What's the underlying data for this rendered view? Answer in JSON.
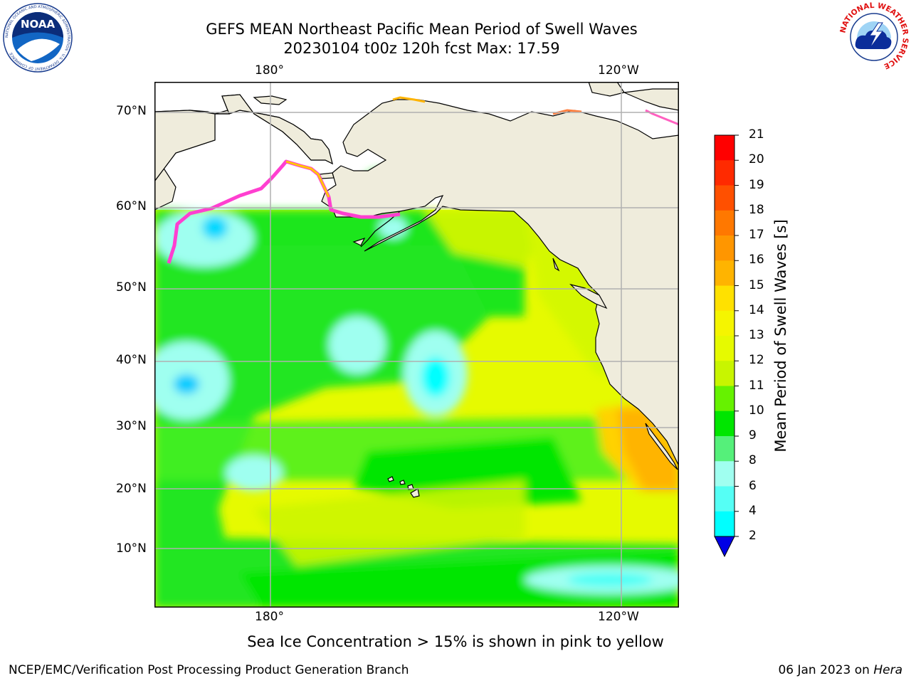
{
  "title": {
    "line1": "GEFS MEAN Northeast Pacific Mean Period of Swell Waves",
    "line2": "20230104 t00z 120h fcst   Max: 17.59"
  },
  "map": {
    "lon_labels_top": [
      "180°",
      "120°W"
    ],
    "lon_labels_bottom": [
      "180°",
      "120°W"
    ],
    "lat_labels": [
      "70°N",
      "60°N",
      "50°N",
      "40°N",
      "30°N",
      "20°N",
      "10°N"
    ],
    "land_color": "#efecdc",
    "grid_color": "#b0b0b0"
  },
  "colorbar": {
    "title": "Mean Period of Swell Waves [s]",
    "ticks": [
      "21",
      "20",
      "19",
      "18",
      "17",
      "16",
      "15",
      "14",
      "13",
      "12",
      "11",
      "10",
      "9",
      "8",
      "6",
      "4",
      "2"
    ],
    "colors": [
      "#ff0000",
      "#ff2a00",
      "#ff5000",
      "#ff7800",
      "#ff9600",
      "#ffb400",
      "#ffe100",
      "#f5f500",
      "#e6fa00",
      "#c8f500",
      "#66f200",
      "#00e600",
      "#55f07a",
      "#a0fff0",
      "#55fff5",
      "#00ffff",
      "#0096ff",
      "#0070ff",
      "#0000e6"
    ]
  },
  "caption": "Sea Ice Concentration > 15% is shown in pink to yellow",
  "footer": {
    "left": "NCEP/EMC/Verification Post Processing Product Generation Branch",
    "right_prefix": "06 Jan 2023 on ",
    "right_host": "Hera"
  },
  "logos": {
    "left_text": "NOAA",
    "left_ring": "NATIONAL OCEANIC AND ATMOSPHERIC ADMINISTRATION · U.S. DEPARTMENT OF COMMERCE",
    "right_ring": "NATIONAL WEATHER SERVICE"
  }
}
